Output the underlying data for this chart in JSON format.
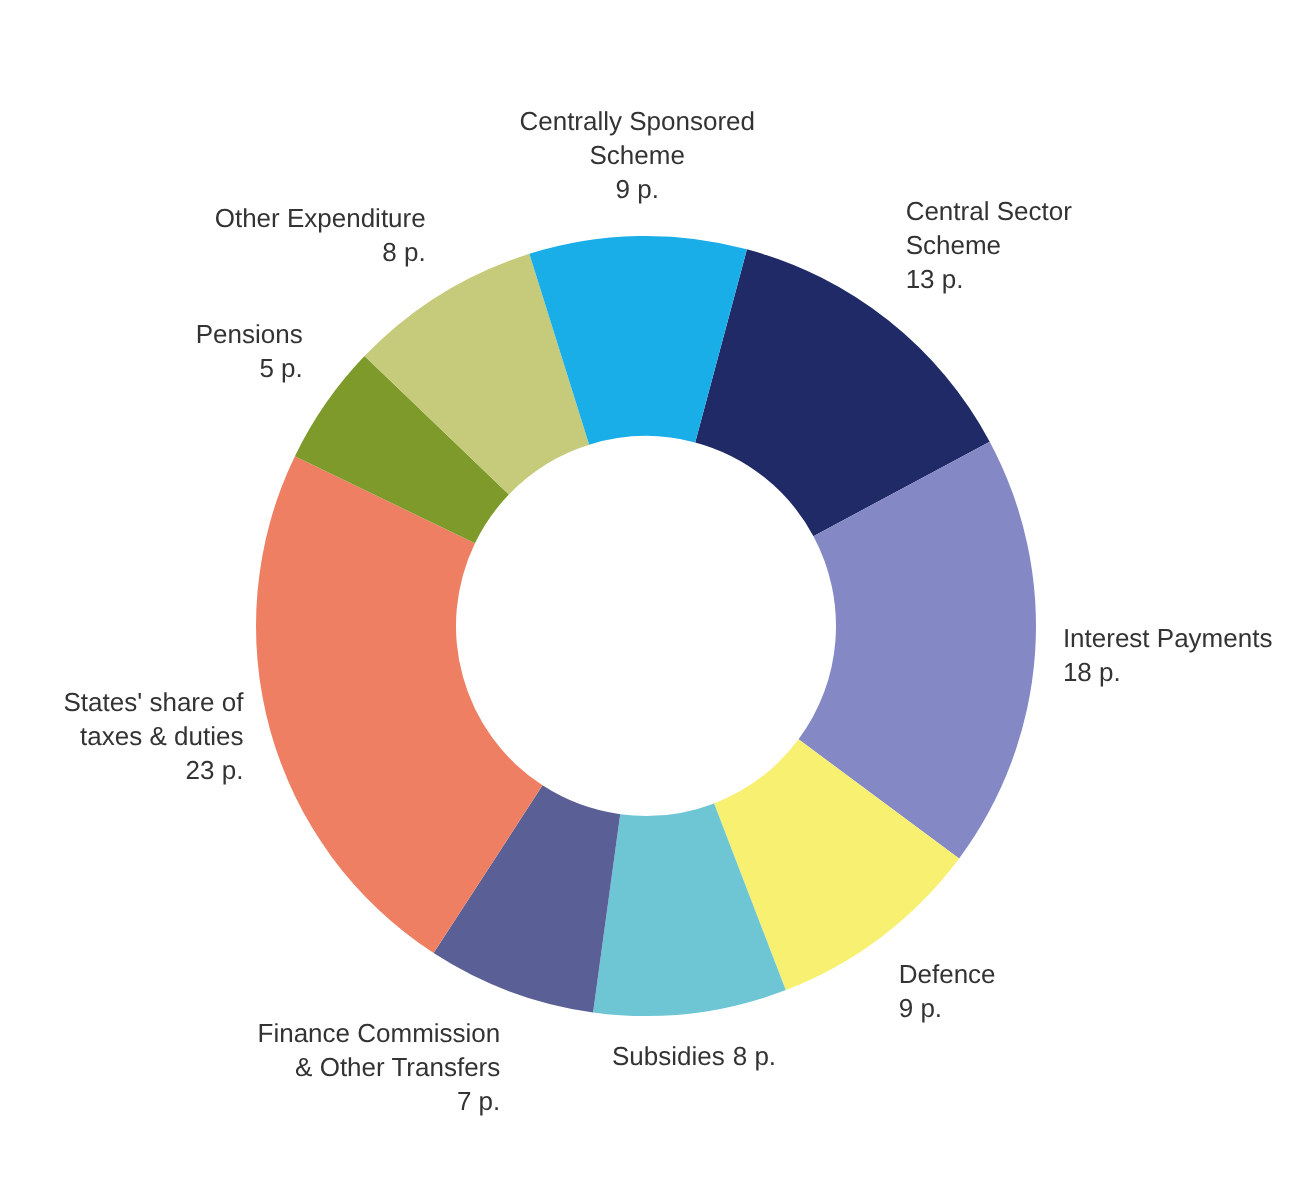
{
  "chart_data": {
    "type": "donut",
    "categories": [
      "Central Sector Scheme",
      "Interest Payments",
      "Defence",
      "Subsidies",
      "Finance Commission & Other Transfers",
      "States' share of taxes & duties",
      "Pensions",
      "Other Expenditure",
      "Centrally Sponsored Scheme"
    ],
    "values": [
      13,
      18,
      9,
      8,
      7,
      23,
      5,
      8,
      9
    ],
    "value_labels": [
      "13 p.",
      "18 p.",
      "9 p.",
      "8 p.",
      "7 p.",
      "23 p.",
      "5 p.",
      "8 p.",
      "9 p."
    ],
    "colors": [
      "#1f2a66",
      "#8489c6",
      "#f8f070",
      "#6ec6d4",
      "#5a5f96",
      "#ee7f63",
      "#7d9a2a",
      "#c5cb7a",
      "#1aaee8"
    ],
    "legend": false
  }
}
